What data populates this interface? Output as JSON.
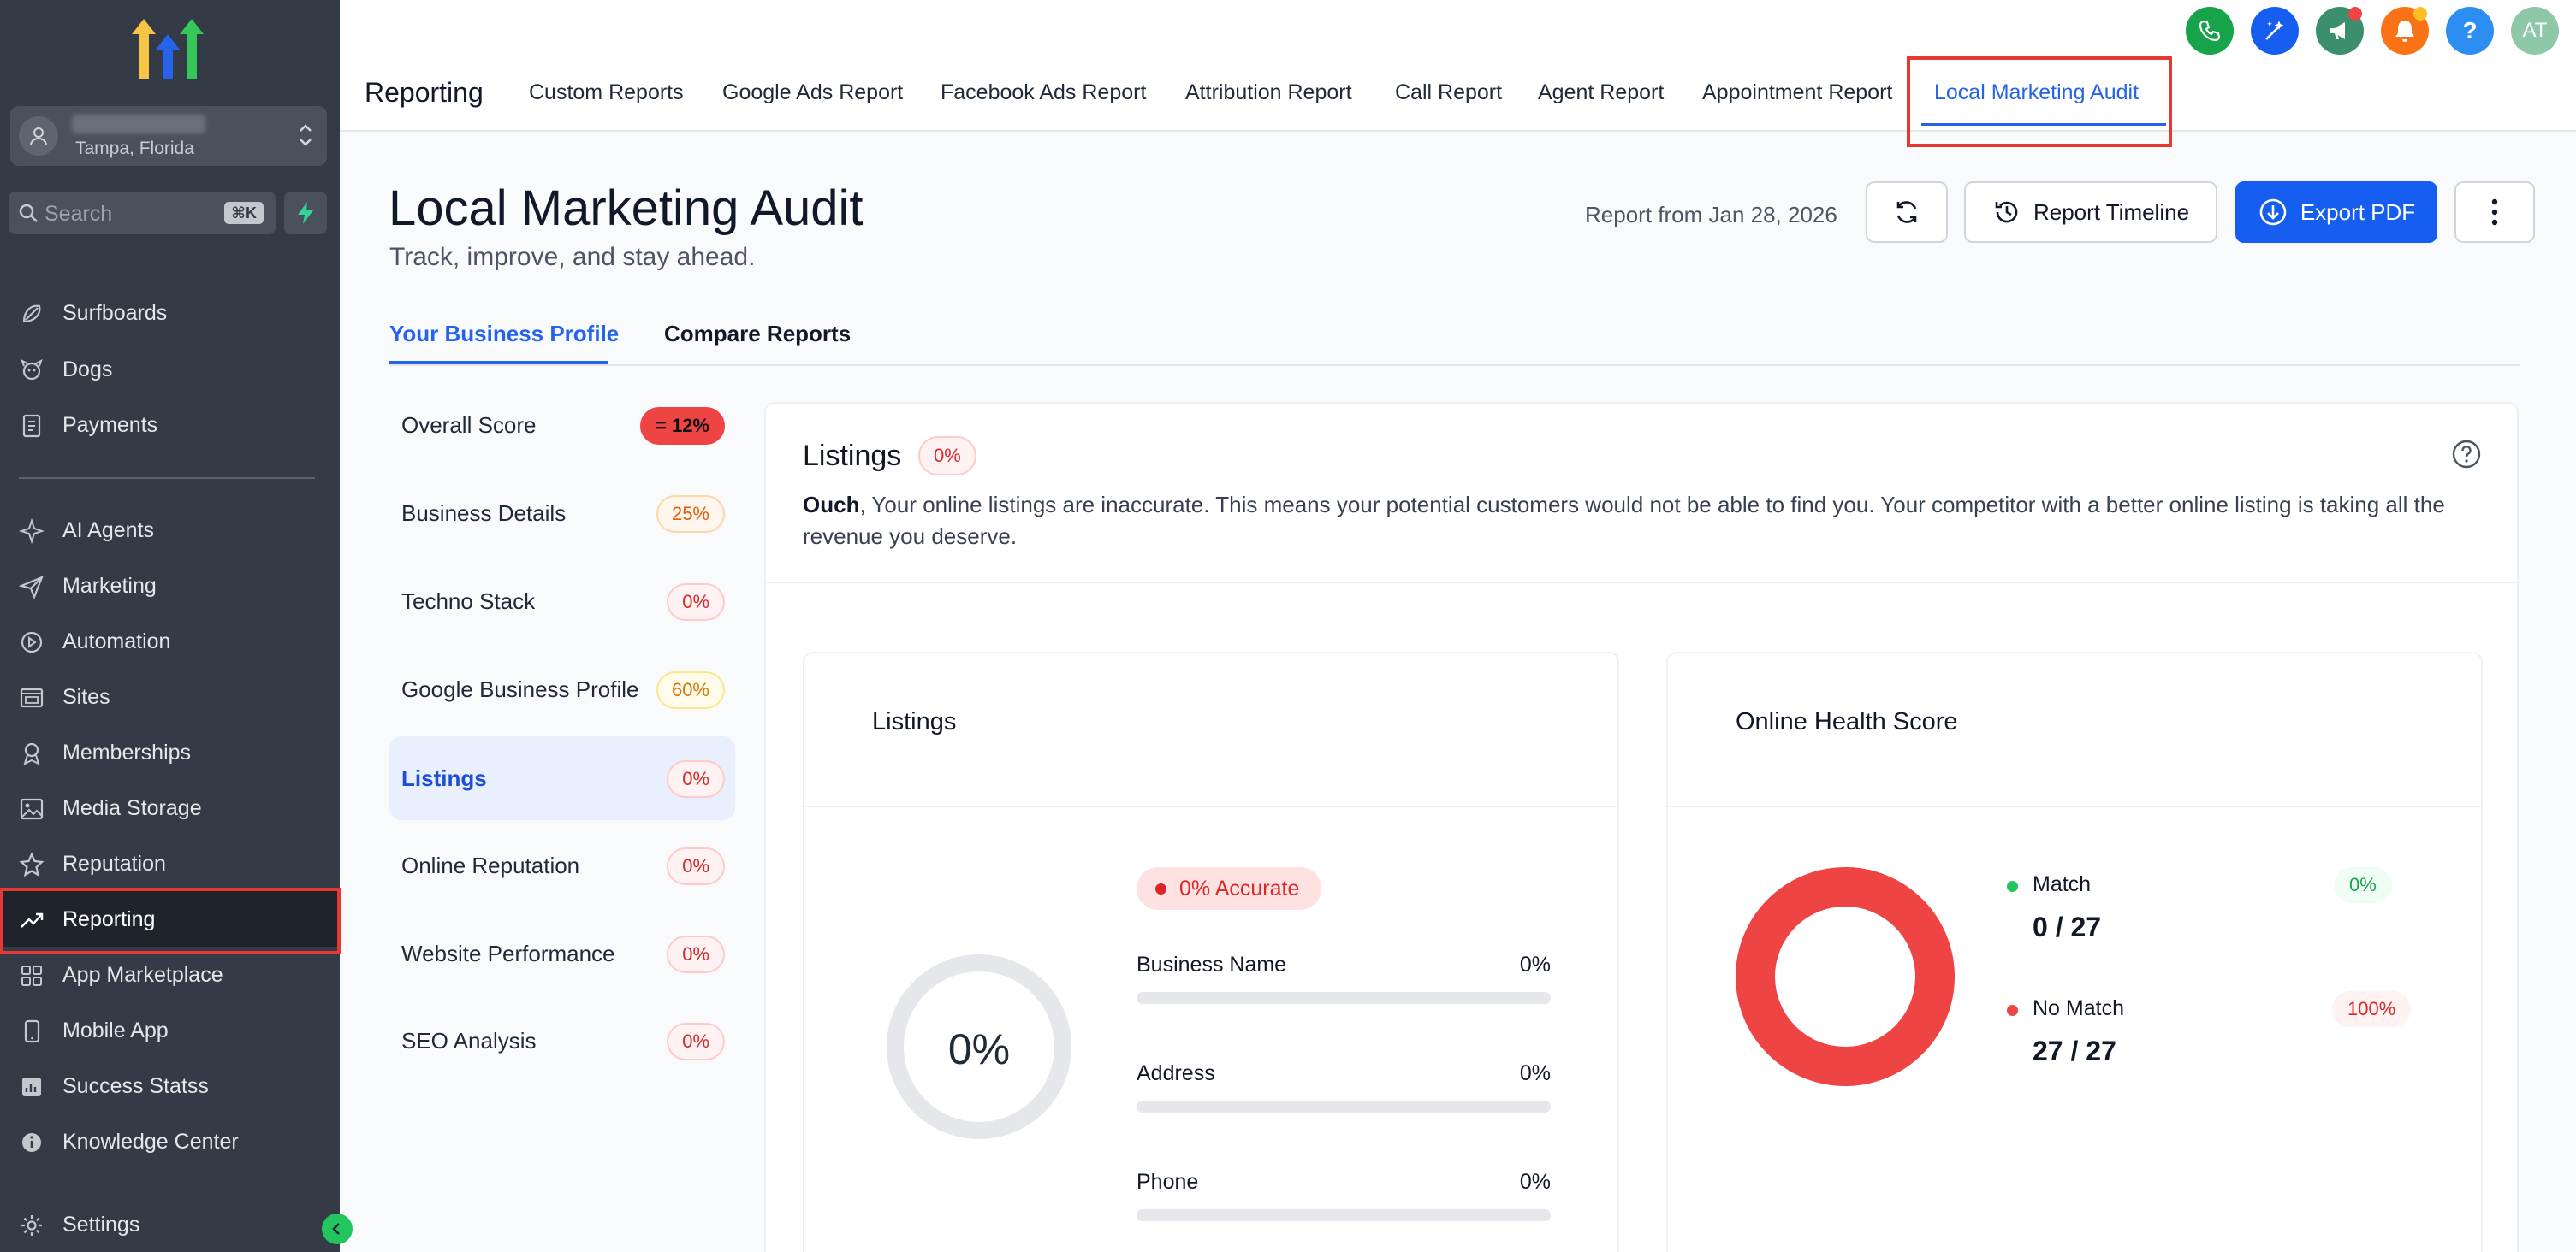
{
  "sidebar": {
    "location": {
      "city": "Tampa, Florida"
    },
    "search": {
      "placeholder": "Search",
      "shortcut": "⌘K"
    },
    "items": [
      {
        "label": "Surfboards",
        "icon": "surfboard-icon"
      },
      {
        "label": "Dogs",
        "icon": "dog-icon"
      },
      {
        "label": "Payments",
        "icon": "payments-icon"
      },
      {
        "label": "AI Agents",
        "icon": "sparkle-icon"
      },
      {
        "label": "Marketing",
        "icon": "send-icon"
      },
      {
        "label": "Automation",
        "icon": "automation-icon"
      },
      {
        "label": "Sites",
        "icon": "sites-icon"
      },
      {
        "label": "Memberships",
        "icon": "membership-icon"
      },
      {
        "label": "Media Storage",
        "icon": "image-icon"
      },
      {
        "label": "Reputation",
        "icon": "star-icon"
      },
      {
        "label": "Reporting",
        "icon": "trend-icon"
      },
      {
        "label": "App Marketplace",
        "icon": "grid-icon"
      },
      {
        "label": "Mobile App",
        "icon": "mobile-icon"
      },
      {
        "label": "Success Statss",
        "icon": "chart-icon"
      },
      {
        "label": "Knowledge Center",
        "icon": "info-icon"
      }
    ],
    "settings_label": "Settings",
    "active_item": "Reporting"
  },
  "topbar": {
    "brand": "Reporting",
    "tabs": [
      "Custom Reports",
      "Google Ads Report",
      "Facebook Ads Report",
      "Attribution Report",
      "Call Report",
      "Agent Report",
      "Appointment Report",
      "Local Marketing Audit"
    ],
    "active_tab": "Local Marketing Audit",
    "user_initials": "AT",
    "help_glyph": "?",
    "colors": {
      "phone": "#16a34a",
      "ai": "#155eef",
      "megaphone": "#3b8f6c",
      "bell": "#f97316",
      "help": "#2b8ef0",
      "avatar": "#8fc7a9"
    }
  },
  "header": {
    "title": "Local Marketing Audit",
    "subtitle": "Track, improve, and stay ahead.",
    "report_date": "Report from Jan 28, 2026",
    "timeline_label": "Report Timeline",
    "export_label": "Export PDF"
  },
  "subtabs": [
    "Your Business Profile",
    "Compare Reports"
  ],
  "menu": [
    {
      "label": "Overall Score",
      "value": "= 12%",
      "style": "solid"
    },
    {
      "label": "Business Details",
      "value": "25%",
      "style": "orange"
    },
    {
      "label": "Techno Stack",
      "value": "0%",
      "style": "red"
    },
    {
      "label": "Google Business Profile",
      "value": "60%",
      "style": "yellow"
    },
    {
      "label": "Listings",
      "value": "0%",
      "style": "red"
    },
    {
      "label": "Online Reputation",
      "value": "0%",
      "style": "red"
    },
    {
      "label": "Website Performance",
      "value": "0%",
      "style": "red"
    },
    {
      "label": "SEO Analysis",
      "value": "0%",
      "style": "red"
    }
  ],
  "active_menu": "Listings",
  "listings_panel": {
    "title": "Listings",
    "badge": "0%",
    "desc_bold": "Ouch",
    "desc_rest": ", Your online listings are inaccurate. This means your potential customers would not be able to find you. Your competitor with a better online listing is taking all the revenue you deserve.",
    "listings_card": {
      "title": "Listings",
      "ring_value": "0%",
      "ring_fraction": 0,
      "accuracy_badge": "0% Accurate",
      "fields": [
        {
          "label": "Business Name",
          "value": "0%",
          "fraction": 0
        },
        {
          "label": "Address",
          "value": "0%",
          "fraction": 0
        },
        {
          "label": "Phone",
          "value": "0%",
          "fraction": 0
        }
      ]
    },
    "health_card": {
      "title": "Online Health Score",
      "match": {
        "label": "Match",
        "pct": "0%",
        "count": "0 / 27",
        "color": "#22c55e"
      },
      "no_match": {
        "label": "No Match",
        "pct": "100%",
        "count": "27 / 27",
        "color": "#ef4444"
      },
      "donut": {
        "match": 0,
        "no_match": 27
      }
    }
  }
}
